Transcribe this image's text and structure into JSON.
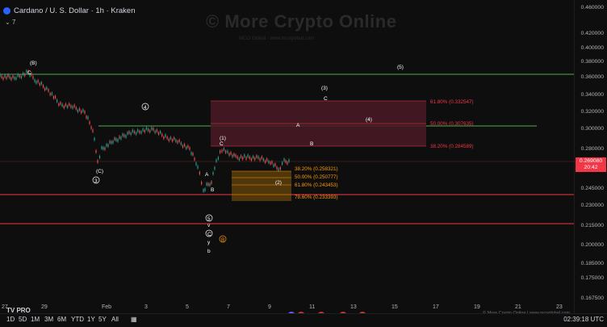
{
  "header": {
    "title": "Cardano / U. S. Dollar · 1h · Kraken",
    "indicator_count": "7"
  },
  "watermark": {
    "title": "© More Crypto Online",
    "subtitle": "MCO Global  ·  www.mcoglobal.com"
  },
  "y_axis": {
    "ticks": [
      "0.460000",
      "0.420000",
      "0.400000",
      "0.380000",
      "0.360000",
      "0.340000",
      "0.320000",
      "0.300000",
      "0.280000",
      "0.260000",
      "0.245000",
      "0.230000",
      "0.215000",
      "0.200000",
      "0.185000",
      "0.175000",
      "0.167500"
    ],
    "current_price": "0.269080",
    "countdown": "20:42"
  },
  "x_axis": {
    "ticks": [
      "27",
      "29",
      "Feb",
      "3",
      "5",
      "7",
      "9",
      "11",
      "13",
      "15",
      "17",
      "19",
      "21",
      "23"
    ]
  },
  "range_buttons": [
    "1D",
    "5D",
    "1M",
    "3M",
    "6M",
    "YTD",
    "1Y",
    "5Y",
    "All"
  ],
  "clock": "02:39:18 UTC",
  "logo": "TV PRO",
  "credit": "© More Crypto Online  |  www.mcoglobal.com",
  "fib_upper": [
    {
      "label": "61.80% (0.332547)",
      "color": "#f23645"
    },
    {
      "label": "50.00% (0.307635)",
      "color": "#f23645"
    },
    {
      "label": "38.20% (0.284589)",
      "color": "#f23645"
    }
  ],
  "fib_lower": [
    {
      "label": "38.20% (0.258321)",
      "color": "#ff9800"
    },
    {
      "label": "50.00% (0.250777)",
      "color": "#ff9800"
    },
    {
      "label": "61.80% (0.243453)",
      "color": "#ff9800"
    },
    {
      "label": "78.60% (0.233393)",
      "color": "#ff9800"
    }
  ],
  "wave_labels": {
    "B_top": "(B)",
    "C_top": "C",
    "w4_circ": "4",
    "C_paren": "(C)",
    "w3_circ": "3",
    "w1": "(1)",
    "c1": "C",
    "A1": "A",
    "B1": "B",
    "w2": "(2)",
    "w5_circ": "5",
    "v": "v",
    "C_circ": "C",
    "y": "y",
    "b": "b",
    "B_orange": "B",
    "w3_paren": "(3)",
    "c3": "C",
    "A_mid": "A",
    "w4_paren": "(4)",
    "B_mid": "B",
    "w5_paren": "(5)"
  },
  "colors": {
    "bullish": "#26a69a",
    "bearish": "#ef5350",
    "green_line": "#4caf50",
    "red_line": "#f23645",
    "fib_upper_box": "#4a1a25",
    "fib_lower_box": "#5c3d0a"
  }
}
